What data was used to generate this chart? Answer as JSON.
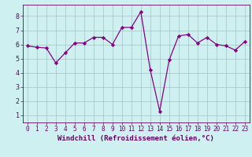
{
  "x": [
    0,
    1,
    2,
    3,
    4,
    5,
    6,
    7,
    8,
    9,
    10,
    11,
    12,
    13,
    14,
    15,
    16,
    17,
    18,
    19,
    20,
    21,
    22,
    23
  ],
  "y": [
    5.9,
    5.8,
    5.75,
    4.7,
    5.4,
    6.1,
    6.1,
    6.5,
    6.5,
    6.0,
    7.2,
    7.2,
    8.3,
    4.2,
    1.3,
    4.9,
    6.6,
    6.7,
    6.1,
    6.5,
    6.0,
    5.9,
    5.6,
    6.2
  ],
  "line_color": "#880088",
  "marker": "D",
  "marker_size": 2.2,
  "bg_color": "#cff0f0",
  "grid_color": "#aabbcc",
  "xlabel": "Windchill (Refroidissement éolien,°C)",
  "xlabel_color": "#660066",
  "xlabel_fontsize": 6.5,
  "ylabel_ticks": [
    1,
    2,
    3,
    4,
    5,
    6,
    7,
    8
  ],
  "xtick_labels": [
    "0",
    "1",
    "2",
    "3",
    "4",
    "5",
    "6",
    "7",
    "8",
    "9",
    "10",
    "11",
    "12",
    "13",
    "14",
    "15",
    "16",
    "17",
    "18",
    "19",
    "20",
    "21",
    "22",
    "23"
  ],
  "ylim": [
    0.5,
    8.8
  ],
  "xlim": [
    -0.5,
    23.5
  ],
  "tick_fontsize": 5.5,
  "tick_color": "#660066",
  "spine_color": "#660066",
  "linewidth": 0.9
}
